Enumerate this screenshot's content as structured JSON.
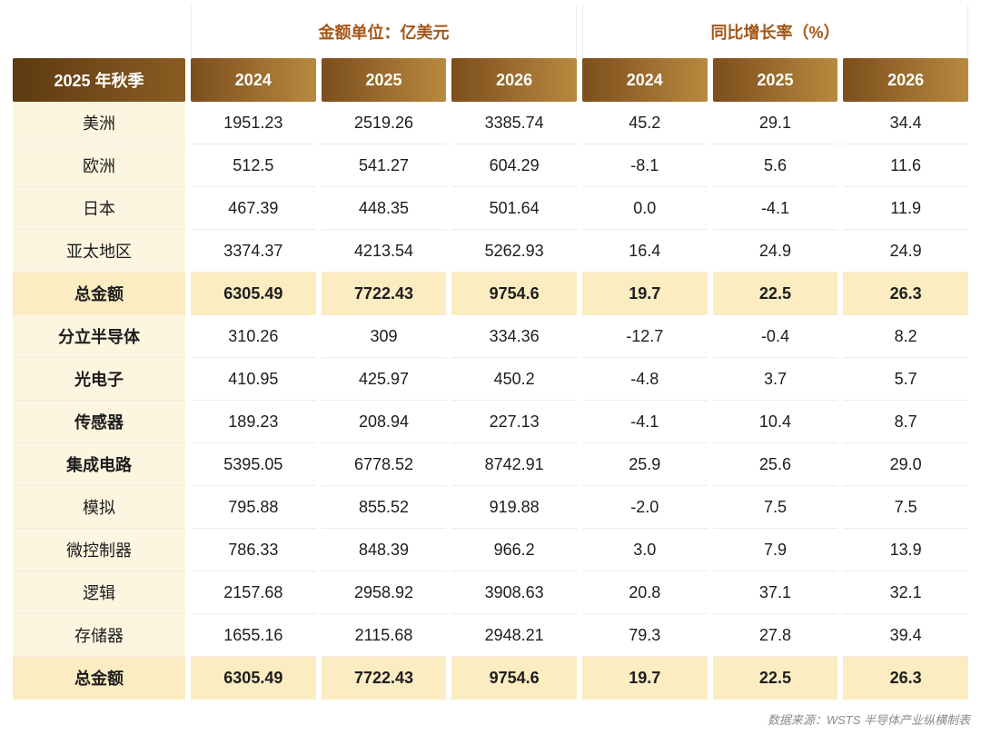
{
  "table": {
    "group_headers": {
      "amount": "金额单位：亿美元",
      "growth": "同比增长率（%）"
    },
    "corner_label": "2025 年秋季",
    "amount_years": [
      "2024",
      "2025",
      "2026"
    ],
    "growth_years": [
      "2024",
      "2025",
      "2026"
    ],
    "rows": [
      {
        "label": "美洲",
        "style": "plain",
        "amounts": [
          "1951.23",
          "2519.26",
          "3385.74"
        ],
        "growth": [
          "45.2",
          "29.1",
          "34.4"
        ]
      },
      {
        "label": "欧洲",
        "style": "plain",
        "amounts": [
          "512.5",
          "541.27",
          "604.29"
        ],
        "growth": [
          "-8.1",
          "5.6",
          "11.6"
        ]
      },
      {
        "label": "日本",
        "style": "plain",
        "amounts": [
          "467.39",
          "448.35",
          "501.64"
        ],
        "growth": [
          "0.0",
          "-4.1",
          "11.9"
        ]
      },
      {
        "label": "亚太地区",
        "style": "plain",
        "amounts": [
          "3374.37",
          "4213.54",
          "5262.93"
        ],
        "growth": [
          "16.4",
          "24.9",
          "24.9"
        ]
      },
      {
        "label": "总金额",
        "style": "total",
        "amounts": [
          "6305.49",
          "7722.43",
          "9754.6"
        ],
        "growth": [
          "19.7",
          "22.5",
          "26.3"
        ]
      },
      {
        "label": "分立半导体",
        "style": "bold-label",
        "amounts": [
          "310.26",
          "309",
          "334.36"
        ],
        "growth": [
          "-12.7",
          "-0.4",
          "8.2"
        ]
      },
      {
        "label": "光电子",
        "style": "bold-label",
        "amounts": [
          "410.95",
          "425.97",
          "450.2"
        ],
        "growth": [
          "-4.8",
          "3.7",
          "5.7"
        ]
      },
      {
        "label": "传感器",
        "style": "bold-label",
        "amounts": [
          "189.23",
          "208.94",
          "227.13"
        ],
        "growth": [
          "-4.1",
          "10.4",
          "8.7"
        ]
      },
      {
        "label": "集成电路",
        "style": "bold-label",
        "amounts": [
          "5395.05",
          "6778.52",
          "8742.91"
        ],
        "growth": [
          "25.9",
          "25.6",
          "29.0"
        ]
      },
      {
        "label": "模拟",
        "style": "plain",
        "amounts": [
          "795.88",
          "855.52",
          "919.88"
        ],
        "growth": [
          "-2.0",
          "7.5",
          "7.5"
        ]
      },
      {
        "label": "微控制器",
        "style": "plain",
        "amounts": [
          "786.33",
          "848.39",
          "966.2"
        ],
        "growth": [
          "3.0",
          "7.9",
          "13.9"
        ]
      },
      {
        "label": "逻辑",
        "style": "plain",
        "amounts": [
          "2157.68",
          "2958.92",
          "3908.63"
        ],
        "growth": [
          "20.8",
          "37.1",
          "32.1"
        ]
      },
      {
        "label": "存储器",
        "style": "plain",
        "amounts": [
          "1655.16",
          "2115.68",
          "2948.21"
        ],
        "growth": [
          "79.3",
          "27.8",
          "39.4"
        ]
      },
      {
        "label": "总金额",
        "style": "total",
        "amounts": [
          "6305.49",
          "7722.43",
          "9754.6"
        ],
        "growth": [
          "19.7",
          "22.5",
          "26.3"
        ]
      }
    ],
    "source_note": "数据来源：WSTS 半导体产业纵横制表"
  },
  "colors": {
    "header_text_brown": "#a25617",
    "header_gradient_dark": "#7c4e1c",
    "header_gradient_light": "#b8893f",
    "corner_gradient_dark": "#5e3a12",
    "label_column_bg": "#fdf5e0",
    "total_row_bg": "#fcecc2",
    "row_divider": "#f1ece2",
    "footer_text": "#8a8a8a"
  }
}
